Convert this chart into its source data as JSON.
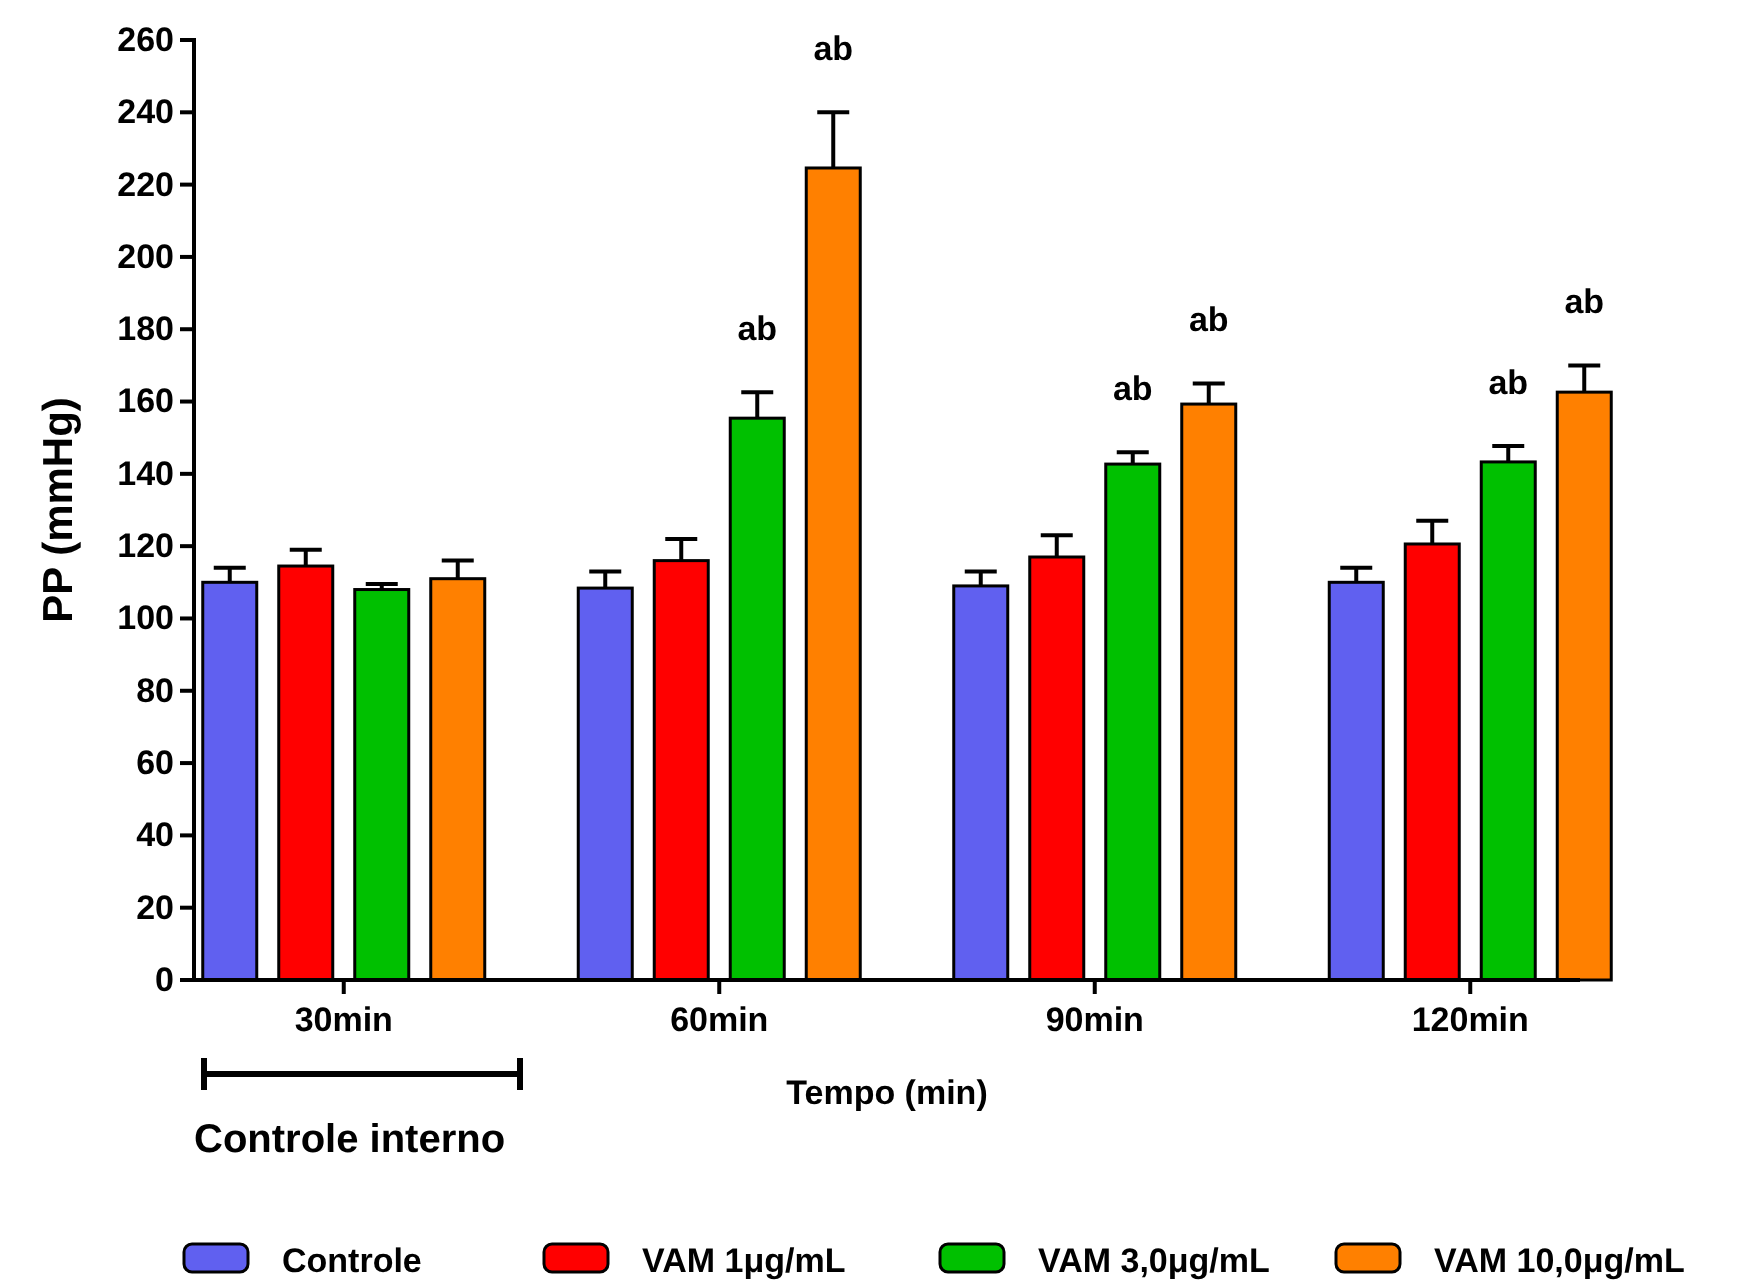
{
  "chart_data": {
    "type": "bar",
    "xlabel": "Tempo (min)",
    "ylabel": "PP (mmHg)",
    "categories": [
      "30min",
      "60min",
      "90min",
      "120min"
    ],
    "series": [
      {
        "name": "Controle",
        "color": "#6060f0",
        "values": [
          110,
          108.4,
          109,
          110
        ],
        "errors": [
          4,
          4.6,
          4,
          4
        ]
      },
      {
        "name": "VAM 1μg/mL",
        "color": "#ff0000",
        "values": [
          114.5,
          116,
          117,
          120.6
        ],
        "errors": [
          4.5,
          6,
          6,
          6.4
        ]
      },
      {
        "name": "VAM 3,0μg/mL",
        "color": "#00c000",
        "values": [
          108,
          155.4,
          142.7,
          143.3
        ],
        "errors": [
          1.5,
          7.2,
          3.3,
          4.4
        ]
      },
      {
        "name": "VAM 10,0μg/mL",
        "color": "#ff8000",
        "values": [
          111,
          224.6,
          159.3,
          162.6
        ],
        "errors": [
          5,
          15.4,
          5.7,
          7.4
        ]
      }
    ],
    "ylim": [
      0,
      260
    ],
    "yticks": [
      0,
      20,
      40,
      60,
      80,
      100,
      120,
      140,
      160,
      180,
      200,
      220,
      240,
      260
    ],
    "grid": false,
    "legend": "bottom",
    "annotations": [
      "ab",
      "ab",
      "ab",
      "ab",
      "ab",
      "ab",
      "Controle interno"
    ]
  }
}
